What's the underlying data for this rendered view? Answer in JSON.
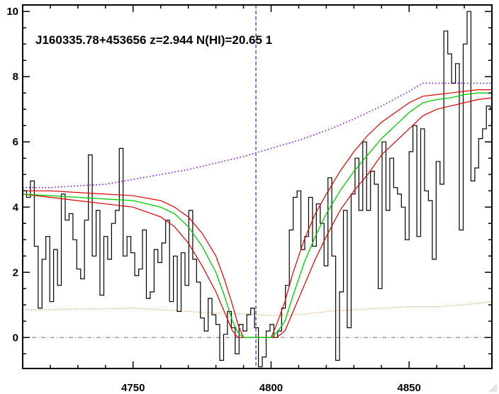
{
  "chart_data": {
    "type": "line",
    "title": "J160335.78+453656 z=2.944 N(HI)=20.65 1",
    "xlabel": "",
    "ylabel": "",
    "xlim": [
      4710,
      4880
    ],
    "ylim": [
      -0.95,
      10.2
    ],
    "x_ticks": [
      4750,
      4800,
      4850
    ],
    "y_ticks": [
      0,
      2,
      4,
      6,
      8,
      10
    ],
    "grid": false,
    "vline": {
      "x": 4794.5,
      "color": "#0000cc"
    },
    "hline": {
      "y": 0,
      "color": "#777777"
    },
    "colors": {
      "spectrum": "#000000",
      "model": "#00cc00",
      "model_bounds": "#dd0000",
      "continuum": "#8800ff",
      "error": "#ee8833"
    },
    "series": [
      {
        "key": "spectrum",
        "type": "step",
        "x": [
          4710,
          4711.4,
          4712.8,
          4714.2,
          4715.6,
          4717,
          4718.4,
          4719.8,
          4721.2,
          4722.6,
          4724,
          4725.4,
          4726.8,
          4728.2,
          4729.6,
          4731,
          4732.4,
          4733.8,
          4735.2,
          4736.6,
          4738,
          4739.4,
          4740.8,
          4742.2,
          4743.6,
          4745,
          4746.4,
          4747.8,
          4749.2,
          4750.6,
          4752,
          4753.4,
          4754.8,
          4756.2,
          4757.6,
          4759,
          4760.4,
          4761.8,
          4763.2,
          4764.6,
          4766,
          4767.4,
          4768.8,
          4770.2,
          4771.6,
          4773,
          4774.4,
          4775.8,
          4777.2,
          4778.6,
          4780,
          4781.4,
          4782.8,
          4784.2,
          4785.6,
          4787,
          4788.4,
          4789.8,
          4791.2,
          4792.6,
          4794,
          4795.4,
          4796.8,
          4798.2,
          4799.6,
          4801,
          4802.4,
          4803.8,
          4805.2,
          4806.6,
          4808,
          4809.4,
          4810.8,
          4812.2,
          4813.6,
          4815,
          4816.4,
          4817.8,
          4819.2,
          4820.6,
          4822,
          4823.4,
          4824.8,
          4826.2,
          4827.6,
          4829,
          4830.4,
          4831.8,
          4833.2,
          4834.6,
          4836,
          4837.4,
          4838.8,
          4840.2,
          4841.6,
          4843,
          4844.4,
          4845.8,
          4847.2,
          4848.6,
          4850,
          4851.4,
          4852.8,
          4854.2,
          4855.6,
          4857,
          4858.4,
          4859.8,
          4861.2,
          4862.6,
          4864,
          4865.4,
          4866.8,
          4868.2,
          4869.6,
          4871,
          4872.4,
          4873.8,
          4875.2,
          4876.6,
          4878,
          4879.4
        ],
        "y": [
          4.5,
          4.3,
          4.8,
          2.8,
          0.9,
          2.4,
          3.1,
          1.1,
          2.7,
          1.6,
          4.4,
          3.6,
          3.8,
          3.0,
          2.1,
          1.8,
          3.6,
          5.6,
          2.5,
          3.9,
          1.3,
          3.1,
          2.4,
          3.5,
          3.9,
          5.8,
          2.5,
          3.1,
          2.6,
          1.9,
          2.1,
          3.3,
          1.2,
          1.4,
          2.7,
          2.3,
          2.9,
          3.6,
          1.1,
          2.5,
          0.8,
          2.6,
          1.6,
          3.9,
          2.4,
          1.7,
          0.6,
          0.2,
          1.2,
          0.7,
          0.4,
          -0.7,
          0.1,
          0.8,
          0.3,
          -0.5,
          0.4,
          0.2,
          0.7,
          0.9,
          0.3,
          -0.9,
          -0.6,
          0.2,
          0.4,
          0.0,
          0.2,
          0.9,
          1.6,
          3.3,
          4.3,
          4.5,
          2.7,
          3.1,
          4.3,
          2.8,
          4.1,
          3.5,
          2.2,
          4.9,
          2.5,
          -0.7,
          1.4,
          3.9,
          0.3,
          4.4,
          5.5,
          3.9,
          6.0,
          3.9,
          5.1,
          4.7,
          1.5,
          6.0,
          3.9,
          5.5,
          4.6,
          4.4,
          4.0,
          3.0,
          5.7,
          6.5,
          3.1,
          6.4,
          4.5,
          4.2,
          2.4,
          5.4,
          4.7,
          9.4,
          8.7,
          7.8,
          8.4,
          3.3,
          9.0,
          10.0,
          4.8,
          5.2,
          6.1,
          6.4,
          7.1,
          7.0
        ]
      },
      {
        "key": "model",
        "type": "line",
        "x": [
          4710,
          4720,
          4730,
          4740,
          4750,
          4760,
          4765,
          4770,
          4775,
          4780,
          4783,
          4786,
          4788,
          4790,
          4800,
          4802,
          4805,
          4808,
          4812,
          4816,
          4820,
          4825,
          4830,
          4835,
          4840,
          4845,
          4850,
          4855,
          4860,
          4865,
          4870,
          4875,
          4880
        ],
        "y": [
          4.4,
          4.35,
          4.3,
          4.25,
          4.2,
          4.0,
          3.8,
          3.4,
          2.8,
          2.0,
          1.3,
          0.5,
          0.15,
          0.0,
          0.0,
          0.15,
          0.5,
          1.3,
          2.3,
          3.1,
          3.8,
          4.5,
          5.1,
          5.6,
          6.1,
          6.5,
          6.9,
          7.2,
          7.3,
          7.35,
          7.45,
          7.5,
          7.5
        ]
      },
      {
        "key": "model_upper",
        "type": "line",
        "x": [
          4710,
          4720,
          4730,
          4740,
          4750,
          4760,
          4765,
          4770,
          4775,
          4780,
          4783,
          4786,
          4788,
          4790,
          4800,
          4802,
          4805,
          4808,
          4812,
          4816,
          4820,
          4825,
          4830,
          4835,
          4840,
          4845,
          4850,
          4855,
          4860,
          4865,
          4870,
          4875,
          4880
        ],
        "y": [
          4.5,
          4.5,
          4.45,
          4.4,
          4.35,
          4.2,
          4.0,
          3.7,
          3.2,
          2.5,
          1.8,
          1.0,
          0.4,
          0.0,
          0.0,
          0.4,
          1.1,
          2.0,
          3.0,
          3.8,
          4.4,
          5.1,
          5.7,
          6.2,
          6.6,
          6.9,
          7.2,
          7.4,
          7.45,
          7.5,
          7.55,
          7.6,
          7.6
        ]
      },
      {
        "key": "model_lower",
        "type": "line",
        "x": [
          4710,
          4720,
          4730,
          4740,
          4750,
          4760,
          4765,
          4770,
          4775,
          4780,
          4783,
          4786,
          4788,
          4790,
          4800,
          4802,
          4805,
          4808,
          4812,
          4816,
          4820,
          4825,
          4830,
          4835,
          4840,
          4845,
          4850,
          4855,
          4860,
          4865,
          4870,
          4875,
          4880
        ],
        "y": [
          4.4,
          4.3,
          4.2,
          4.1,
          4.0,
          3.7,
          3.4,
          2.9,
          2.2,
          1.4,
          0.8,
          0.2,
          0.0,
          0.0,
          0.0,
          0.0,
          0.2,
          0.8,
          1.6,
          2.4,
          3.1,
          3.9,
          4.5,
          5.0,
          5.6,
          6.0,
          6.4,
          6.8,
          7.0,
          7.1,
          7.2,
          7.3,
          7.35
        ]
      },
      {
        "key": "continuum",
        "type": "dotted",
        "x": [
          4710,
          4720,
          4730,
          4740,
          4750,
          4760,
          4770,
          4780,
          4790,
          4800,
          4810,
          4820,
          4830,
          4840,
          4850,
          4855,
          4860,
          4870,
          4880
        ],
        "y": [
          4.6,
          4.6,
          4.65,
          4.7,
          4.85,
          5.0,
          5.15,
          5.35,
          5.55,
          5.8,
          6.05,
          6.35,
          6.7,
          7.1,
          7.55,
          7.8,
          7.8,
          7.8,
          7.8
        ]
      },
      {
        "key": "error",
        "type": "dotted",
        "x": [
          4710,
          4720,
          4730,
          4740,
          4750,
          4760,
          4770,
          4780,
          4790,
          4800,
          4810,
          4820,
          4830,
          4840,
          4850,
          4860,
          4870,
          4880
        ],
        "y": [
          0.85,
          0.85,
          0.88,
          0.88,
          0.9,
          0.85,
          0.8,
          0.75,
          0.72,
          0.68,
          0.7,
          0.8,
          0.85,
          0.9,
          0.95,
          0.95,
          1.0,
          1.1
        ]
      }
    ]
  }
}
